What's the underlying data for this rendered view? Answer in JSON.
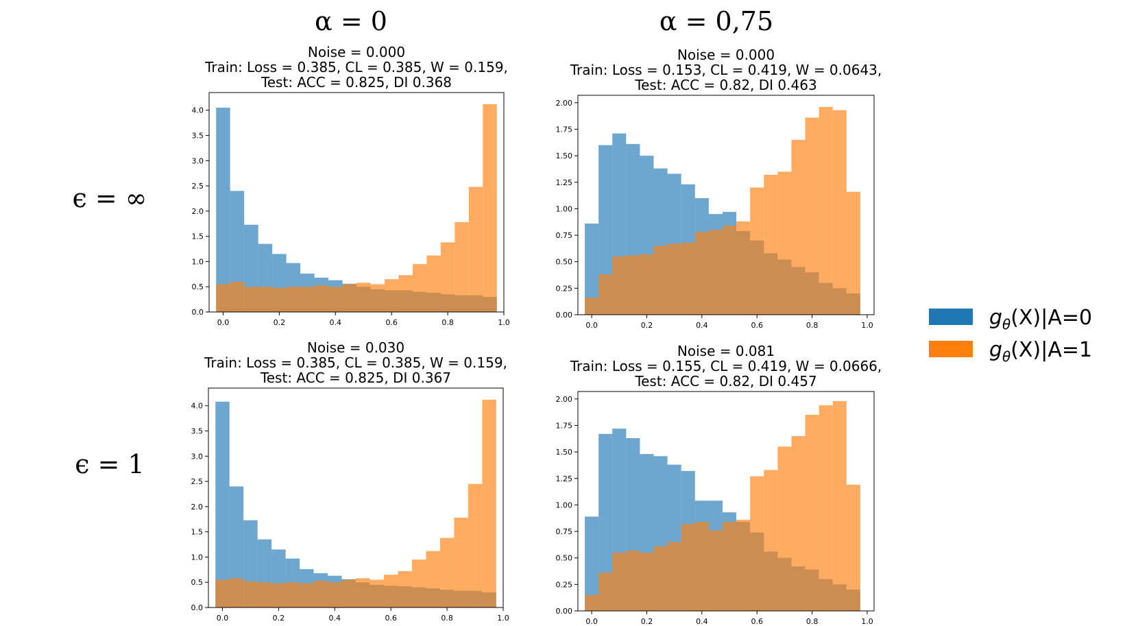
{
  "figure": {
    "column_headers": [
      "α = 0",
      "α = 0,75"
    ],
    "row_labels": [
      "ϵ = ∞",
      "ϵ = 1"
    ],
    "legend": [
      {
        "label": "gθ(X)|A=0",
        "label_main": "g",
        "label_sub": "θ",
        "label_rest": "(X)|A=0",
        "color": "#1f77b4"
      },
      {
        "label": "gθ(X)|A=1",
        "label_main": "g",
        "label_sub": "θ",
        "label_rest": "(X)|A=1",
        "color": "#ff7f0e"
      }
    ],
    "colors": {
      "a0": "#1f77b4",
      "a1": "#ff7f0e",
      "alpha": 0.65
    }
  },
  "chart_data": [
    {
      "type": "bar",
      "title_lines": [
        "Noise = 0.000",
        "Train: Loss = 0.385, CL = 0.385,  W = 0.159,",
        "Test: ACC = 0.825, DI 0.368"
      ],
      "xlim": [
        -0.05,
        1.0
      ],
      "xticks": [
        "0.0",
        "0.2",
        "0.4",
        "0.6",
        "0.8",
        "1.0"
      ],
      "xtick_values": [
        0.0,
        0.2,
        0.4,
        0.6,
        0.8,
        1.0
      ],
      "ylim": [
        0,
        4.35
      ],
      "yticks": [
        "0.0",
        "0.5",
        "1.0",
        "1.5",
        "2.0",
        "2.5",
        "3.0",
        "3.5",
        "4.0"
      ],
      "ytick_values": [
        0,
        0.5,
        1,
        1.5,
        2,
        2.5,
        3,
        3.5,
        4
      ],
      "bin_start": -0.025,
      "bin_width": 0.05,
      "series": [
        {
          "name": "gθ(X)|A=0",
          "values": [
            4.05,
            2.4,
            1.73,
            1.35,
            1.15,
            0.97,
            0.76,
            0.68,
            0.63,
            0.56,
            0.5,
            0.45,
            0.43,
            0.43,
            0.4,
            0.38,
            0.35,
            0.33,
            0.33,
            0.3
          ]
        },
        {
          "name": "gθ(X)|A=1",
          "values": [
            0.55,
            0.6,
            0.5,
            0.5,
            0.48,
            0.5,
            0.5,
            0.53,
            0.5,
            0.55,
            0.58,
            0.55,
            0.65,
            0.73,
            0.95,
            1.12,
            1.38,
            1.78,
            2.48,
            4.12
          ]
        }
      ]
    },
    {
      "type": "bar",
      "title_lines": [
        "Noise = 0.000",
        "Train: Loss = 0.153, CL = 0.419,  W = 0.0643,",
        "Test: ACC = 0.82, DI 0.463"
      ],
      "xlim": [
        -0.05,
        1.025
      ],
      "xticks": [
        "0.0",
        "0.2",
        "0.4",
        "0.6",
        "0.8",
        "1.0"
      ],
      "xtick_values": [
        0.0,
        0.2,
        0.4,
        0.6,
        0.8,
        1.0
      ],
      "ylim": [
        0,
        2.07
      ],
      "yticks": [
        "0.00",
        "0.25",
        "0.50",
        "0.75",
        "1.00",
        "1.25",
        "1.50",
        "1.75",
        "2.00"
      ],
      "ytick_values": [
        0,
        0.25,
        0.5,
        0.75,
        1,
        1.25,
        1.5,
        1.75,
        2
      ],
      "bin_start": -0.025,
      "bin_width": 0.05,
      "series": [
        {
          "name": "gθ(X)|A=0",
          "values": [
            0.86,
            1.6,
            1.71,
            1.61,
            1.5,
            1.38,
            1.33,
            1.23,
            1.1,
            0.95,
            0.97,
            0.79,
            0.7,
            0.58,
            0.52,
            0.45,
            0.4,
            0.3,
            0.25,
            0.2
          ]
        },
        {
          "name": "gθ(X)|A=1",
          "values": [
            0.16,
            0.38,
            0.55,
            0.56,
            0.57,
            0.65,
            0.67,
            0.68,
            0.78,
            0.8,
            0.84,
            0.88,
            1.2,
            1.32,
            1.35,
            1.65,
            1.86,
            1.96,
            1.93,
            1.16
          ]
        }
      ]
    },
    {
      "type": "bar",
      "title_lines": [
        "Noise = 0.030",
        "Train: Loss = 0.385, CL = 0.385,  W = 0.159,",
        "Test: ACC = 0.825, DI 0.367"
      ],
      "xlim": [
        -0.05,
        1.0
      ],
      "xticks": [
        "0.0",
        "0.2",
        "0.4",
        "0.6",
        "0.8",
        "1.0"
      ],
      "xtick_values": [
        0.0,
        0.2,
        0.4,
        0.6,
        0.8,
        1.0
      ],
      "ylim": [
        0,
        4.35
      ],
      "yticks": [
        "0.0",
        "0.5",
        "1.0",
        "1.5",
        "2.0",
        "2.5",
        "3.0",
        "3.5",
        "4.0"
      ],
      "ytick_values": [
        0,
        0.5,
        1,
        1.5,
        2,
        2.5,
        3,
        3.5,
        4
      ],
      "bin_start": -0.025,
      "bin_width": 0.05,
      "series": [
        {
          "name": "gθ(X)|A=0",
          "values": [
            4.08,
            2.4,
            1.73,
            1.35,
            1.15,
            0.97,
            0.76,
            0.68,
            0.63,
            0.56,
            0.5,
            0.45,
            0.43,
            0.42,
            0.4,
            0.38,
            0.35,
            0.33,
            0.33,
            0.3
          ]
        },
        {
          "name": "gθ(X)|A=1",
          "values": [
            0.55,
            0.58,
            0.52,
            0.5,
            0.48,
            0.5,
            0.48,
            0.53,
            0.5,
            0.55,
            0.58,
            0.55,
            0.65,
            0.72,
            0.95,
            1.12,
            1.38,
            1.78,
            2.45,
            4.12
          ]
        }
      ]
    },
    {
      "type": "bar",
      "title_lines": [
        "Noise = 0.081",
        "Train: Loss = 0.155, CL = 0.419,  W = 0.0666,",
        "Test: ACC = 0.82, DI 0.457"
      ],
      "xlim": [
        -0.05,
        1.025
      ],
      "xticks": [
        "0.0",
        "0.2",
        "0.4",
        "0.6",
        "0.8",
        "1.0"
      ],
      "xtick_values": [
        0.0,
        0.2,
        0.4,
        0.6,
        0.8,
        1.0
      ],
      "ylim": [
        0,
        2.07
      ],
      "yticks": [
        "0.00",
        "0.25",
        "0.50",
        "0.75",
        "1.00",
        "1.25",
        "1.50",
        "1.75",
        "2.00"
      ],
      "ytick_values": [
        0,
        0.25,
        0.5,
        0.75,
        1,
        1.25,
        1.5,
        1.75,
        2
      ],
      "bin_start": -0.025,
      "bin_width": 0.05,
      "series": [
        {
          "name": "gθ(X)|A=0",
          "values": [
            0.89,
            1.67,
            1.72,
            1.63,
            1.48,
            1.46,
            1.38,
            1.32,
            1.04,
            1.04,
            0.93,
            0.84,
            0.74,
            0.56,
            0.5,
            0.42,
            0.39,
            0.3,
            0.25,
            0.2
          ]
        },
        {
          "name": "gθ(X)|A=1",
          "values": [
            0.15,
            0.36,
            0.55,
            0.57,
            0.55,
            0.61,
            0.65,
            0.82,
            0.84,
            0.76,
            0.84,
            0.86,
            1.27,
            1.33,
            1.55,
            1.65,
            1.85,
            1.94,
            1.98,
            1.19
          ]
        }
      ]
    }
  ]
}
